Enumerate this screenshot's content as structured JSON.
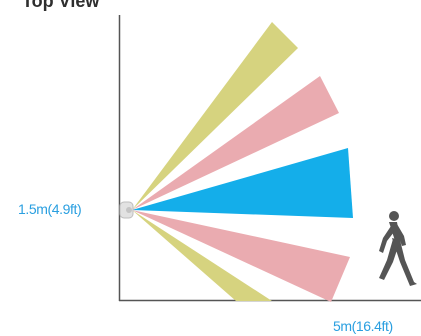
{
  "title": "Top View",
  "labels": {
    "height": "1.5m(4.9ft)",
    "range": "5m(16.4ft)"
  },
  "colors": {
    "axis": "#555555",
    "zone_yellow": "#d6d37f",
    "zone_pink": "#eaabb0",
    "zone_blue": "#14aeea",
    "label": "#2a9fe0",
    "person": "#555555",
    "sensor": "#d9d9d9"
  },
  "icons": {
    "sensor": "sensor-icon",
    "person": "walking-person-icon"
  }
}
